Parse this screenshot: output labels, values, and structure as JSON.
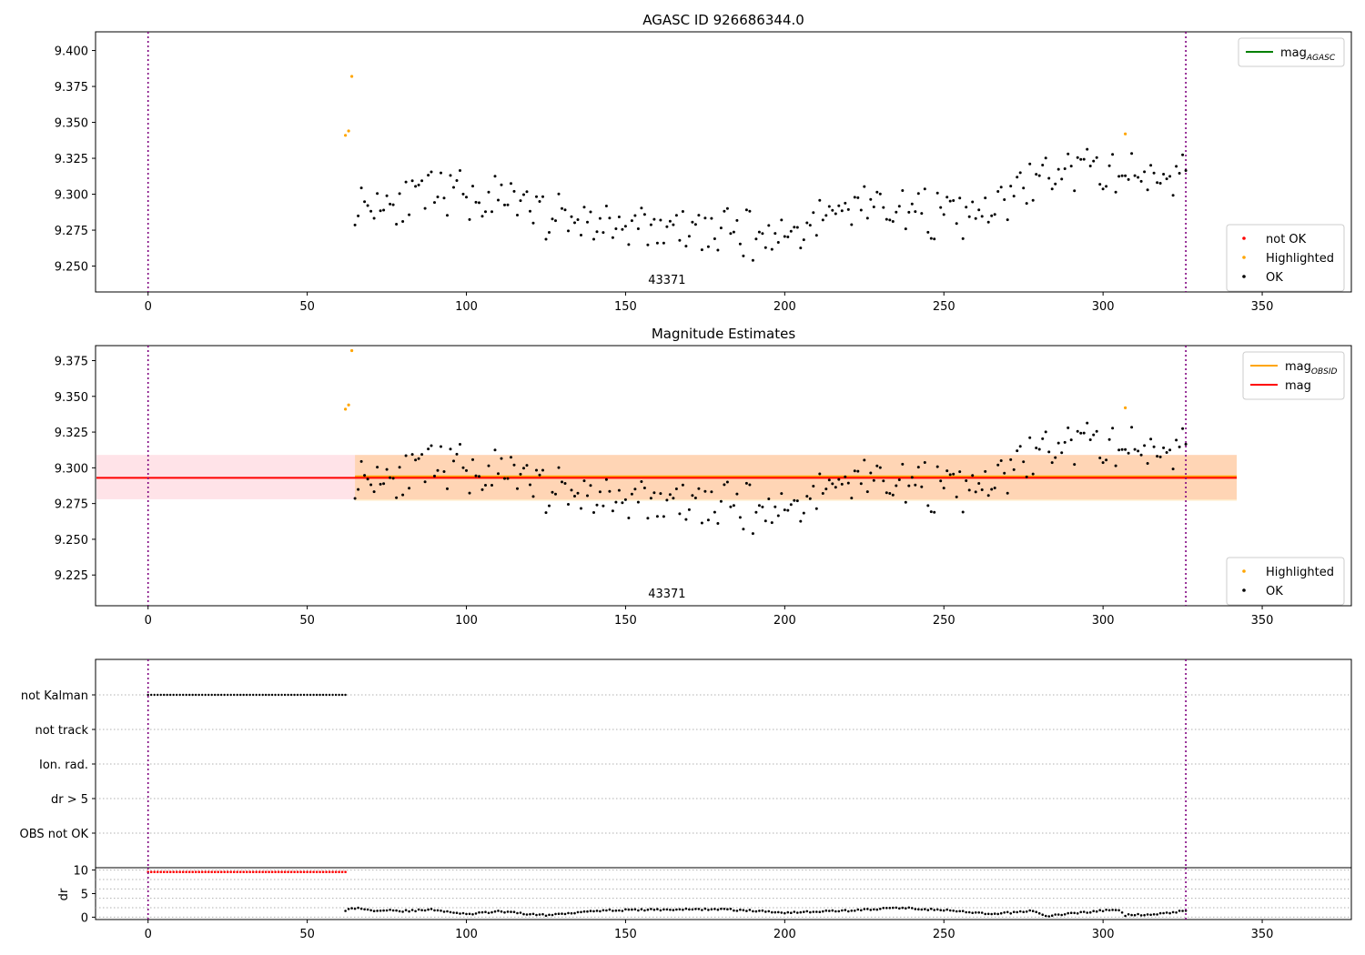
{
  "chart_data": [
    {
      "id": "p1",
      "type": "scatter",
      "title": "AGASC ID 926686344.0",
      "xlim": [
        -16.5,
        378
      ],
      "ylim": [
        9.232,
        9.413
      ],
      "xticks": [
        0,
        50,
        100,
        150,
        200,
        250,
        300,
        350
      ],
      "yticks": [
        9.25,
        9.275,
        9.3,
        9.325,
        9.35,
        9.375,
        9.4
      ],
      "ytick_labels": [
        "9.250",
        "9.275",
        "9.300",
        "9.325",
        "9.350",
        "9.375",
        "9.400"
      ],
      "vlines": [
        0,
        326
      ],
      "obs_label": {
        "text": "43371",
        "x": 163
      },
      "legend_top": [
        {
          "label": "mag",
          "sub": "AGASC",
          "color": "#008000",
          "kind": "line"
        }
      ],
      "legend_bottom": [
        {
          "label": "not OK",
          "color": "#ff0000"
        },
        {
          "label": "Highlighted",
          "color": "#ffa500"
        },
        {
          "label": "OK",
          "color": "#000000"
        }
      ],
      "series": [
        {
          "name": "Highlighted",
          "color": "#ffa500",
          "x": [
            62,
            63,
            64,
            307
          ],
          "y": [
            9.341,
            9.344,
            9.382,
            9.342
          ]
        },
        {
          "name": "OK",
          "color": "#000000",
          "x": [
            65,
            100,
            140,
            160,
            200,
            225,
            260,
            282,
            300,
            326
          ],
          "y": [
            9.294,
            9.3,
            9.28,
            9.275,
            9.272,
            9.295,
            9.282,
            9.315,
            9.315,
            9.315
          ]
        }
      ]
    },
    {
      "id": "p2",
      "type": "scatter",
      "title": "Magnitude Estimates",
      "xlim": [
        -16.5,
        378
      ],
      "ylim": [
        9.2035,
        9.3855
      ],
      "xticks": [
        0,
        50,
        100,
        150,
        200,
        250,
        300,
        350
      ],
      "yticks": [
        9.225,
        9.25,
        9.275,
        9.3,
        9.325,
        9.35,
        9.375
      ],
      "ytick_labels": [
        "9.225",
        "9.250",
        "9.275",
        "9.300",
        "9.325",
        "9.350",
        "9.375"
      ],
      "vlines": [
        0,
        326
      ],
      "obs_label": {
        "text": "43371",
        "x": 163
      },
      "mag_line": {
        "y": 9.293,
        "x": [
          -16.5,
          342
        ],
        "color": "#ff0000"
      },
      "mag_band_pink": {
        "y": [
          9.278,
          9.309
        ],
        "x": [
          -16.5,
          342
        ],
        "color": "#ffc0cb"
      },
      "mag_obsid": {
        "y": 9.294,
        "band": [
          9.277,
          9.309
        ],
        "x": [
          65,
          342
        ],
        "color": "#ffa500"
      },
      "legend_top": [
        {
          "label": "mag",
          "sub": "OBSID",
          "color": "#ffa500",
          "kind": "line"
        },
        {
          "label": "mag",
          "sub": "",
          "color": "#ff0000",
          "kind": "line"
        }
      ],
      "legend_bottom": [
        {
          "label": "Highlighted",
          "color": "#ffa500"
        },
        {
          "label": "OK",
          "color": "#000000"
        }
      ],
      "series": [
        {
          "name": "Highlighted",
          "color": "#ffa500",
          "x": [
            62,
            63,
            64,
            307
          ],
          "y": [
            9.341,
            9.344,
            9.382,
            9.342
          ]
        },
        {
          "name": "OK",
          "color": "#000000",
          "x": [
            65,
            100,
            140,
            160,
            200,
            225,
            260,
            282,
            300,
            326
          ],
          "y": [
            9.294,
            9.3,
            9.28,
            9.275,
            9.272,
            9.295,
            9.282,
            9.315,
            9.315,
            9.315
          ]
        }
      ]
    },
    {
      "id": "p3",
      "type": "scatter",
      "xlim": [
        -16.5,
        378
      ],
      "categories": [
        "not Kalman",
        "not track",
        "Ion. rad.",
        "dr > 5",
        "OBS not OK"
      ],
      "flags": [
        {
          "category": "not Kalman",
          "x_range": [
            0,
            62
          ],
          "color": "#000000"
        }
      ],
      "vlines": [
        0,
        326
      ]
    },
    {
      "id": "p4",
      "type": "scatter",
      "xlim": [
        -16.5,
        378
      ],
      "ylim": [
        -0.5,
        10.5
      ],
      "ylabel": "dr",
      "xticks": [
        0,
        50,
        100,
        150,
        200,
        250,
        300,
        350
      ],
      "yticks": [
        0,
        5,
        10
      ],
      "vlines": [
        0,
        326
      ],
      "series": [
        {
          "name": "dr (red)",
          "color": "#ff0000",
          "x_range": [
            0,
            62
          ],
          "y": 9.6
        },
        {
          "name": "dr",
          "color": "#000000",
          "x": [
            62,
            66,
            70,
            75,
            80,
            90,
            100,
            110,
            125,
            140,
            160,
            180,
            200,
            220,
            236,
            250,
            265,
            278,
            282,
            290,
            300,
            305,
            307,
            320,
            326
          ],
          "y": [
            1.5,
            2.0,
            1.4,
            1.6,
            1.3,
            1.6,
            0.6,
            1.2,
            0.4,
            1.4,
            1.6,
            1.7,
            1.0,
            1.4,
            2.0,
            1.5,
            0.6,
            1.4,
            0.2,
            0.8,
            1.4,
            1.5,
            0.4,
            0.8,
            1.5
          ]
        }
      ]
    }
  ]
}
